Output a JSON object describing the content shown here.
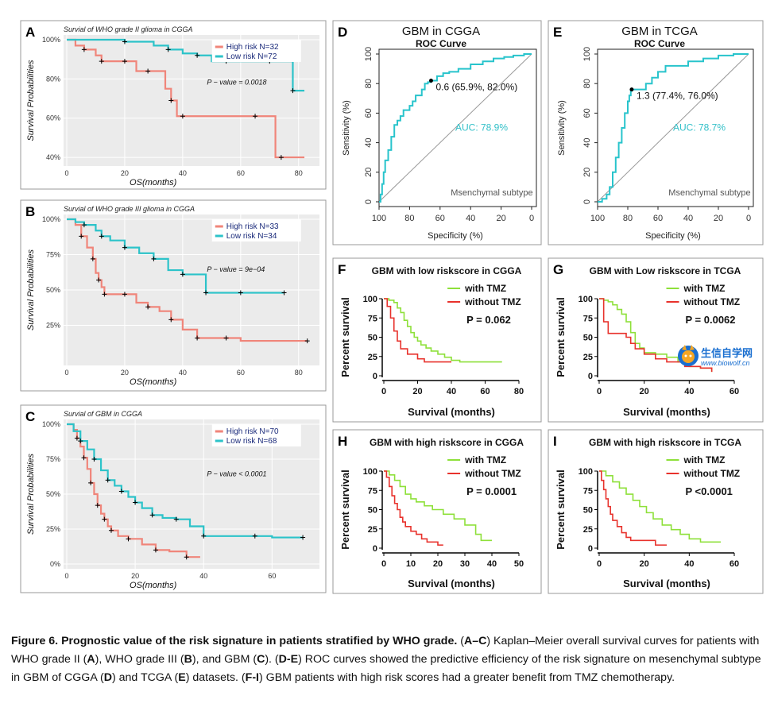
{
  "colors": {
    "high": "#f0857a",
    "low": "#2cc3c9",
    "tmz": "#8ee03a",
    "notmz": "#e8322c",
    "km_bg": "#ebebeb",
    "roc": "#28c4cc"
  },
  "km_panels": [
    {
      "letter": "A",
      "subtitle": "Survial of WHO grade II glioma in CGGA",
      "xlabel": "OS(months)",
      "ylabel": "Survival Probabilities",
      "x_ticks": [
        "0",
        "20",
        "40",
        "60",
        "80"
      ],
      "y_ticks": [
        "40%",
        "60%",
        "80%",
        "100%"
      ],
      "legend": [
        "High risk N=32",
        "Low risk N=72"
      ],
      "pvalue": "P − value = 0.0018"
    },
    {
      "letter": "B",
      "subtitle": "Survial of WHO grade III glioma in CGGA",
      "xlabel": "OS(months)",
      "ylabel": "Survival Probabilities",
      "x_ticks": [
        "0",
        "20",
        "40",
        "60",
        "80"
      ],
      "y_ticks": [
        "25%",
        "50%",
        "75%",
        "100%"
      ],
      "legend": [
        "High risk N=33",
        "Low risk N=34"
      ],
      "pvalue": "P − value = 9e−04"
    },
    {
      "letter": "C",
      "subtitle": "Survial of GBM in CGGA",
      "xlabel": "OS(months)",
      "ylabel": "Survival Probabilities",
      "x_ticks": [
        "0",
        "20",
        "40",
        "60"
      ],
      "y_ticks": [
        "0%",
        "25%",
        "50%",
        "75%",
        "100%"
      ],
      "legend": [
        "High risk N=70",
        "Low risk N=68"
      ],
      "pvalue": "P − value < 0.0001"
    }
  ],
  "roc_panels": [
    {
      "letter": "D",
      "title": "GBM in CGGA",
      "subtitle": "ROC Curve",
      "auc": "AUC: 78.9%",
      "threshold": "0.6 (65.9%, 82.0%)",
      "note": "Msenchymal subtype",
      "xlabel": "Specificity (%)",
      "ylabel": "Sensitivity (%)",
      "x_ticks": [
        "100",
        "80",
        "60",
        "40",
        "20",
        "0"
      ],
      "y_ticks": [
        "0",
        "20",
        "40",
        "60",
        "80",
        "100"
      ]
    },
    {
      "letter": "E",
      "title": "GBM in TCGA",
      "subtitle": "ROC Curve",
      "auc": "AUC: 78.7%",
      "threshold": "1.3 (77.4%, 76.0%)",
      "note": "Msenchymal subtype",
      "xlabel": "Specificity (%)",
      "ylabel": "Sensitivity (%)",
      "x_ticks": [
        "100",
        "80",
        "60",
        "40",
        "20",
        "0"
      ],
      "y_ticks": [
        "0",
        "20",
        "40",
        "60",
        "80",
        "100"
      ]
    }
  ],
  "gp_panels": [
    {
      "letter": "F",
      "title": "GBM with low riskscore in CGGA",
      "pvalue": "P = 0.062",
      "legend": [
        "with TMZ",
        "without TMZ"
      ],
      "xlabel": "Survival (months)",
      "ylabel": "Percent survival",
      "x_ticks": [
        "0",
        "20",
        "40",
        "60",
        "80"
      ],
      "y_ticks": [
        "0",
        "25",
        "50",
        "75",
        "100"
      ]
    },
    {
      "letter": "G",
      "title": "GBM with Low riskscore in TCGA",
      "pvalue": "P = 0.0062",
      "legend": [
        "with TMZ",
        "without TMZ"
      ],
      "xlabel": "Survival (months)",
      "ylabel": "Percent survival",
      "x_ticks": [
        "0",
        "20",
        "40",
        "60"
      ],
      "y_ticks": [
        "0",
        "25",
        "50",
        "75",
        "100"
      ]
    },
    {
      "letter": "H",
      "title": "GBM with high riskscore in CGGA",
      "pvalue": "P = 0.0001",
      "legend": [
        "with TMZ",
        "without TMZ"
      ],
      "xlabel": "Survival (months)",
      "ylabel": "Percent survival",
      "x_ticks": [
        "0",
        "10",
        "20",
        "30",
        "40",
        "50"
      ],
      "y_ticks": [
        "0",
        "25",
        "50",
        "75",
        "100"
      ]
    },
    {
      "letter": "I",
      "title": "GBM with high riskscore in TCGA",
      "pvalue": "P <0.0001",
      "legend": [
        "with TMZ",
        "without TMZ"
      ],
      "xlabel": "Survival (months)",
      "ylabel": "Percent survival",
      "x_ticks": [
        "0",
        "20",
        "40",
        "60"
      ],
      "y_ticks": [
        "0",
        "25",
        "50",
        "75",
        "100"
      ]
    }
  ],
  "chart_data": [
    {
      "type": "line",
      "panel": "A",
      "xlim": [
        0,
        85
      ],
      "ylim": [
        0.38,
        1.0
      ],
      "series": [
        {
          "name": "High risk N=32",
          "x": [
            0,
            3,
            6,
            10,
            12,
            15,
            20,
            24,
            28,
            34,
            36,
            38,
            40,
            55,
            65,
            72,
            74,
            82
          ],
          "y": [
            1,
            0.97,
            0.95,
            0.92,
            0.89,
            0.89,
            0.89,
            0.84,
            0.84,
            0.75,
            0.69,
            0.61,
            0.61,
            0.61,
            0.61,
            0.4,
            0.4,
            0.4
          ]
        },
        {
          "name": "Low risk N=72",
          "x": [
            0,
            10,
            20,
            30,
            35,
            40,
            45,
            50,
            55,
            60,
            70,
            75,
            78,
            82
          ],
          "y": [
            1,
            1,
            0.99,
            0.97,
            0.95,
            0.93,
            0.92,
            0.89,
            0.89,
            0.89,
            0.89,
            0.89,
            0.74,
            0.74
          ]
        }
      ]
    },
    {
      "type": "line",
      "panel": "B",
      "xlim": [
        0,
        85
      ],
      "ylim": [
        0,
        1.0
      ],
      "series": [
        {
          "name": "High risk N=33",
          "x": [
            0,
            3,
            5,
            7,
            9,
            10,
            11,
            12,
            13,
            14,
            20,
            24,
            28,
            32,
            36,
            40,
            45,
            52,
            55,
            60,
            83
          ],
          "y": [
            1,
            0.96,
            0.88,
            0.8,
            0.72,
            0.62,
            0.57,
            0.52,
            0.47,
            0.47,
            0.47,
            0.41,
            0.38,
            0.35,
            0.29,
            0.22,
            0.16,
            0.16,
            0.16,
            0.14,
            0.14
          ]
        },
        {
          "name": "Low risk N=34",
          "x": [
            0,
            3,
            6,
            10,
            12,
            15,
            20,
            25,
            30,
            35,
            40,
            45,
            48,
            55,
            60,
            70,
            75
          ],
          "y": [
            1,
            0.98,
            0.96,
            0.92,
            0.88,
            0.85,
            0.8,
            0.76,
            0.72,
            0.64,
            0.61,
            0.61,
            0.48,
            0.48,
            0.48,
            0.48,
            0.48
          ]
        }
      ]
    },
    {
      "type": "line",
      "panel": "C",
      "xlim": [
        0,
        72
      ],
      "ylim": [
        0,
        1.0
      ],
      "series": [
        {
          "name": "High risk N=70",
          "x": [
            0,
            2,
            3,
            4,
            5,
            6,
            7,
            8,
            9,
            10,
            11,
            12,
            13,
            15,
            18,
            22,
            26,
            30,
            35,
            39
          ],
          "y": [
            1,
            0.96,
            0.9,
            0.84,
            0.76,
            0.68,
            0.58,
            0.5,
            0.42,
            0.36,
            0.32,
            0.27,
            0.24,
            0.2,
            0.18,
            0.14,
            0.1,
            0.09,
            0.05,
            0.05
          ]
        },
        {
          "name": "Low risk N=68",
          "x": [
            0,
            2,
            4,
            6,
            8,
            10,
            12,
            14,
            16,
            18,
            20,
            22,
            25,
            28,
            32,
            36,
            40,
            45,
            55,
            60,
            69
          ],
          "y": [
            1,
            0.95,
            0.88,
            0.82,
            0.75,
            0.67,
            0.6,
            0.56,
            0.52,
            0.48,
            0.44,
            0.4,
            0.35,
            0.33,
            0.32,
            0.27,
            0.2,
            0.2,
            0.2,
            0.19,
            0.19
          ]
        }
      ]
    },
    {
      "type": "line",
      "panel": "D",
      "xlabel": "Specificity (%)",
      "ylabel": "Sensitivity (%)",
      "series": [
        {
          "name": "ROC",
          "specificity": [
            100,
            99,
            98,
            97,
            96,
            94,
            92,
            90,
            88,
            86,
            84,
            80,
            78,
            76,
            72,
            70,
            68,
            65.9,
            62,
            58,
            54,
            48,
            40,
            32,
            25,
            18,
            12,
            5,
            0
          ],
          "sensitivity": [
            0,
            5,
            12,
            20,
            28,
            35,
            44,
            52,
            55,
            58,
            62,
            65,
            68,
            72,
            76,
            80,
            81,
            82,
            85,
            87,
            88,
            90,
            93,
            95,
            97,
            98,
            99,
            100,
            100
          ]
        }
      ],
      "threshold": {
        "specificity": 65.9,
        "sensitivity": 82.0,
        "label": "0.6 (65.9%, 82.0%)"
      },
      "auc": 78.9
    },
    {
      "type": "line",
      "panel": "E",
      "xlabel": "Specificity (%)",
      "ylabel": "Sensitivity (%)",
      "series": [
        {
          "name": "ROC",
          "specificity": [
            100,
            97,
            94,
            92,
            90,
            88,
            86,
            84,
            82,
            80,
            79,
            78,
            77.4,
            72,
            68,
            64,
            60,
            55,
            40,
            30,
            20,
            10,
            0
          ],
          "sensitivity": [
            0,
            2,
            5,
            10,
            20,
            30,
            40,
            50,
            60,
            68,
            72,
            75,
            76,
            76,
            80,
            84,
            88,
            92,
            95,
            97,
            99,
            100,
            100
          ]
        }
      ],
      "threshold": {
        "specificity": 77.4,
        "sensitivity": 76.0,
        "label": "1.3 (77.4%, 76.0%)"
      },
      "auc": 78.7
    },
    {
      "type": "line",
      "panel": "F",
      "xlim": [
        0,
        80
      ],
      "ylim": [
        0,
        100
      ],
      "series": [
        {
          "name": "with TMZ",
          "x": [
            0,
            3,
            6,
            8,
            10,
            12,
            14,
            16,
            18,
            20,
            22,
            25,
            28,
            32,
            36,
            40,
            45,
            55,
            65,
            70
          ],
          "y": [
            100,
            98,
            95,
            88,
            82,
            72,
            64,
            56,
            50,
            45,
            40,
            36,
            32,
            28,
            24,
            20,
            18,
            18,
            18,
            18
          ]
        },
        {
          "name": "without TMZ",
          "x": [
            0,
            2,
            4,
            6,
            8,
            10,
            14,
            20,
            24,
            35,
            40
          ],
          "y": [
            100,
            90,
            75,
            58,
            45,
            35,
            28,
            22,
            18,
            18,
            18
          ]
        }
      ]
    },
    {
      "type": "line",
      "panel": "G",
      "xlim": [
        0,
        60
      ],
      "ylim": [
        0,
        100
      ],
      "series": [
        {
          "name": "with TMZ",
          "x": [
            0,
            2,
            4,
            6,
            8,
            10,
            12,
            14,
            16,
            18,
            20,
            25,
            30,
            35,
            40,
            45,
            50
          ],
          "y": [
            100,
            98,
            96,
            92,
            86,
            80,
            70,
            56,
            42,
            36,
            30,
            28,
            24,
            18,
            12,
            10,
            5
          ]
        },
        {
          "name": "without TMZ",
          "x": [
            0,
            2,
            4,
            10,
            12,
            14,
            16,
            20,
            25,
            30,
            38,
            45,
            50
          ],
          "y": [
            100,
            70,
            55,
            55,
            50,
            42,
            35,
            28,
            22,
            18,
            12,
            10,
            5
          ]
        }
      ]
    },
    {
      "type": "line",
      "panel": "H",
      "xlim": [
        0,
        50
      ],
      "ylim": [
        0,
        100
      ],
      "series": [
        {
          "name": "with TMZ",
          "x": [
            0,
            2,
            4,
            6,
            8,
            10,
            12,
            15,
            18,
            22,
            26,
            30,
            34,
            36,
            40
          ],
          "y": [
            100,
            95,
            88,
            80,
            70,
            64,
            60,
            55,
            50,
            44,
            38,
            30,
            18,
            10,
            10
          ]
        },
        {
          "name": "without TMZ",
          "x": [
            0,
            1,
            2,
            3,
            4,
            5,
            6,
            7,
            8,
            10,
            12,
            14,
            16,
            20,
            22
          ],
          "y": [
            100,
            92,
            80,
            68,
            58,
            50,
            40,
            34,
            28,
            22,
            18,
            12,
            8,
            4,
            4
          ]
        }
      ]
    },
    {
      "type": "line",
      "panel": "I",
      "xlim": [
        0,
        60
      ],
      "ylim": [
        0,
        100
      ],
      "series": [
        {
          "name": "with TMZ",
          "x": [
            0,
            3,
            6,
            9,
            12,
            15,
            18,
            21,
            24,
            28,
            32,
            36,
            40,
            45,
            50,
            54
          ],
          "y": [
            100,
            94,
            86,
            78,
            70,
            62,
            54,
            46,
            38,
            30,
            24,
            18,
            12,
            8,
            8,
            8
          ]
        },
        {
          "name": "without TMZ",
          "x": [
            0,
            1,
            2,
            3,
            4,
            5,
            6,
            8,
            10,
            12,
            14,
            16,
            20,
            25,
            30
          ],
          "y": [
            100,
            88,
            76,
            64,
            54,
            44,
            36,
            28,
            20,
            14,
            10,
            10,
            10,
            4,
            4
          ]
        }
      ]
    }
  ],
  "caption": {
    "bold": "Figure 6. Prognostic value of the risk signature in patients stratified by WHO grade.",
    "parts": [
      {
        "t": " (",
        "b": false
      },
      {
        "t": "A–C",
        "b": true
      },
      {
        "t": ") Kaplan–Meier overall survival curves for patients with WHO grade II (",
        "b": false
      },
      {
        "t": "A",
        "b": true
      },
      {
        "t": "), WHO grade III (",
        "b": false
      },
      {
        "t": "B",
        "b": true
      },
      {
        "t": "), and GBM (",
        "b": false
      },
      {
        "t": "C",
        "b": true
      },
      {
        "t": "). (",
        "b": false
      },
      {
        "t": "D-E",
        "b": true
      },
      {
        "t": ") ROC curves showed the predictive efficiency of the risk signature on mesenchymal subtype in GBM of CGGA (",
        "b": false
      },
      {
        "t": "D",
        "b": true
      },
      {
        "t": ") and TCGA (",
        "b": false
      },
      {
        "t": "E",
        "b": true
      },
      {
        "t": ") datasets. (",
        "b": false
      },
      {
        "t": "F-I",
        "b": true
      },
      {
        "t": ") GBM patients with high risk scores had a greater benefit from TMZ chemotherapy.",
        "b": false
      }
    ]
  },
  "watermark": {
    "text": "生信自学网",
    "url": "www.biowolf.cn"
  }
}
